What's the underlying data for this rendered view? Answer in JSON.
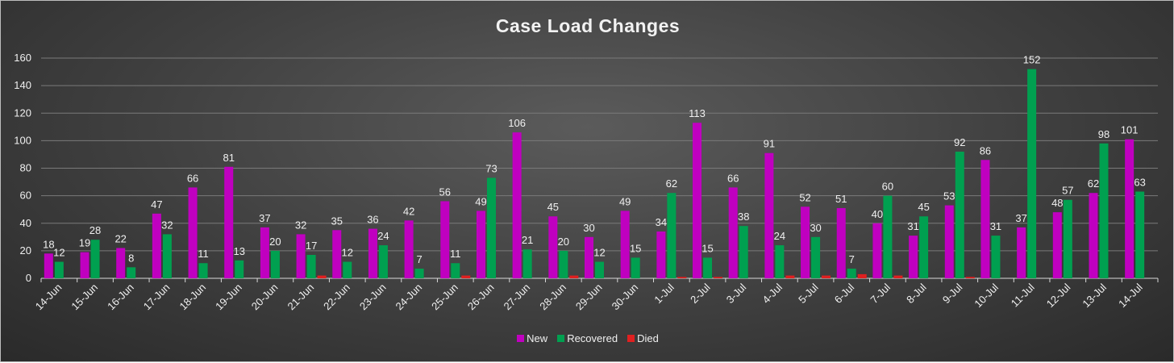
{
  "chart_data": {
    "type": "bar",
    "title": "Case Load Changes",
    "xlabel": "",
    "ylabel": "",
    "ylim": [
      0,
      160
    ],
    "yticks": [
      0,
      20,
      40,
      60,
      80,
      100,
      120,
      140,
      160
    ],
    "grid": true,
    "legend_position": "bottom",
    "categories": [
      "14-Jun",
      "15-Jun",
      "16-Jun",
      "17-Jun",
      "18-Jun",
      "19-Jun",
      "20-Jun",
      "21-Jun",
      "22-Jun",
      "23-Jun",
      "24-Jun",
      "25-Jun",
      "26-Jun",
      "27-Jun",
      "28-Jun",
      "29-Jun",
      "30-Jun",
      "1-Jul",
      "2-Jul",
      "3-Jul",
      "4-Jul",
      "5-Jul",
      "6-Jul",
      "7-Jul",
      "8-Jul",
      "9-Jul",
      "10-Jul",
      "11-Jul",
      "12-Jul",
      "13-Jul",
      "14-Jul"
    ],
    "series": [
      {
        "name": "New",
        "color": "#c000c0",
        "values": [
          18,
          19,
          22,
          47,
          66,
          81,
          37,
          32,
          35,
          36,
          42,
          56,
          49,
          106,
          45,
          30,
          49,
          34,
          113,
          66,
          91,
          52,
          51,
          40,
          31,
          53,
          86,
          37,
          48,
          62,
          101
        ]
      },
      {
        "name": "Recovered",
        "color": "#00a050",
        "values": [
          12,
          28,
          8,
          32,
          11,
          13,
          20,
          17,
          12,
          24,
          7,
          11,
          73,
          21,
          20,
          12,
          15,
          62,
          15,
          38,
          24,
          30,
          7,
          60,
          45,
          92,
          31,
          152,
          57,
          98,
          63
        ]
      },
      {
        "name": "Died",
        "color": "#e02020",
        "values": [
          0,
          0,
          0,
          0,
          0,
          0,
          0,
          2,
          0,
          0,
          0,
          2,
          0,
          0,
          2,
          0,
          0,
          1,
          1,
          0,
          2,
          2,
          3,
          2,
          0,
          1,
          0,
          0,
          0,
          0,
          0
        ]
      }
    ]
  }
}
